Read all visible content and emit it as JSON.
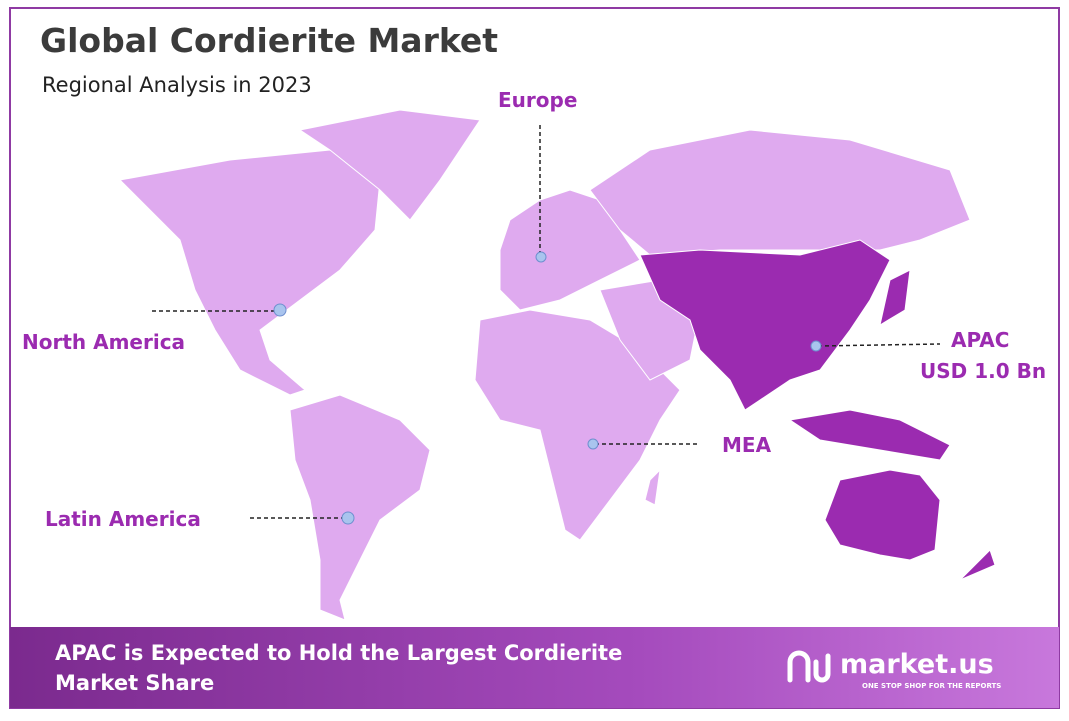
{
  "header": {
    "title": "Global Cordierite Market",
    "subtitle": "Regional Analysis in 2023"
  },
  "regions": [
    {
      "name": "Europe"
    },
    {
      "name": "North America"
    },
    {
      "name": "APAC",
      "value": "USD 1.0 Bn"
    },
    {
      "name": "MEA"
    },
    {
      "name": "Latin America"
    }
  ],
  "footer": {
    "text": "APAC is Expected to Hold the Largest Cordierite",
    "text2": "Market Share",
    "brand": "market.us",
    "tagline": "ONE STOP SHOP FOR THE REPORTS"
  }
}
